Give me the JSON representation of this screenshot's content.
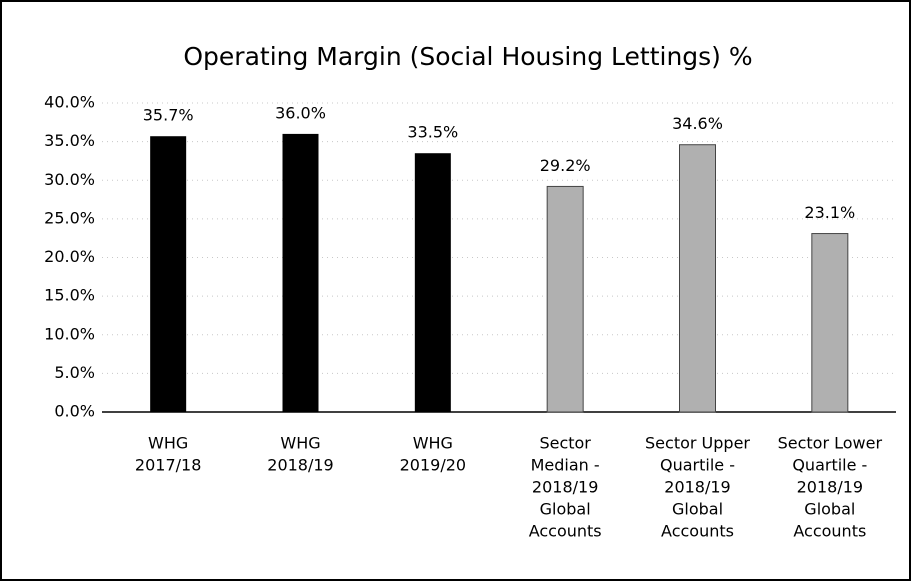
{
  "chart_data": {
    "type": "bar",
    "title": "Operating Margin (Social Housing Lettings) %",
    "categories": [
      [
        "WHG",
        "2017/18"
      ],
      [
        "WHG",
        "2018/19"
      ],
      [
        "WHG",
        "2019/20"
      ],
      [
        "Sector",
        "Median -",
        "2018/19",
        "Global",
        "Accounts"
      ],
      [
        "Sector Upper",
        "Quartile -",
        "2018/19",
        "Global",
        "Accounts"
      ],
      [
        "Sector Lower",
        "Quartile -",
        "2018/19",
        "Global",
        "Accounts"
      ]
    ],
    "values": [
      35.7,
      36.0,
      33.5,
      29.2,
      34.6,
      23.1
    ],
    "value_labels": [
      "35.7%",
      "36.0%",
      "33.5%",
      "29.2%",
      "34.6%",
      "23.1%"
    ],
    "colors": [
      "#000000",
      "#000000",
      "#000000",
      "#b0b0b0",
      "#b0b0b0",
      "#b0b0b0"
    ],
    "ylim": [
      0,
      40
    ],
    "yticks": [
      {
        "value": 0,
        "label": "0.0%"
      },
      {
        "value": 5,
        "label": "5.0%"
      },
      {
        "value": 10,
        "label": "10.0%"
      },
      {
        "value": 15,
        "label": "15.0%"
      },
      {
        "value": 20,
        "label": "20.0%"
      },
      {
        "value": 25,
        "label": "25.0%"
      },
      {
        "value": 30,
        "label": "30.0%"
      },
      {
        "value": 35,
        "label": "35.0%"
      },
      {
        "value": 40,
        "label": "40.0%"
      }
    ],
    "grid": true
  }
}
